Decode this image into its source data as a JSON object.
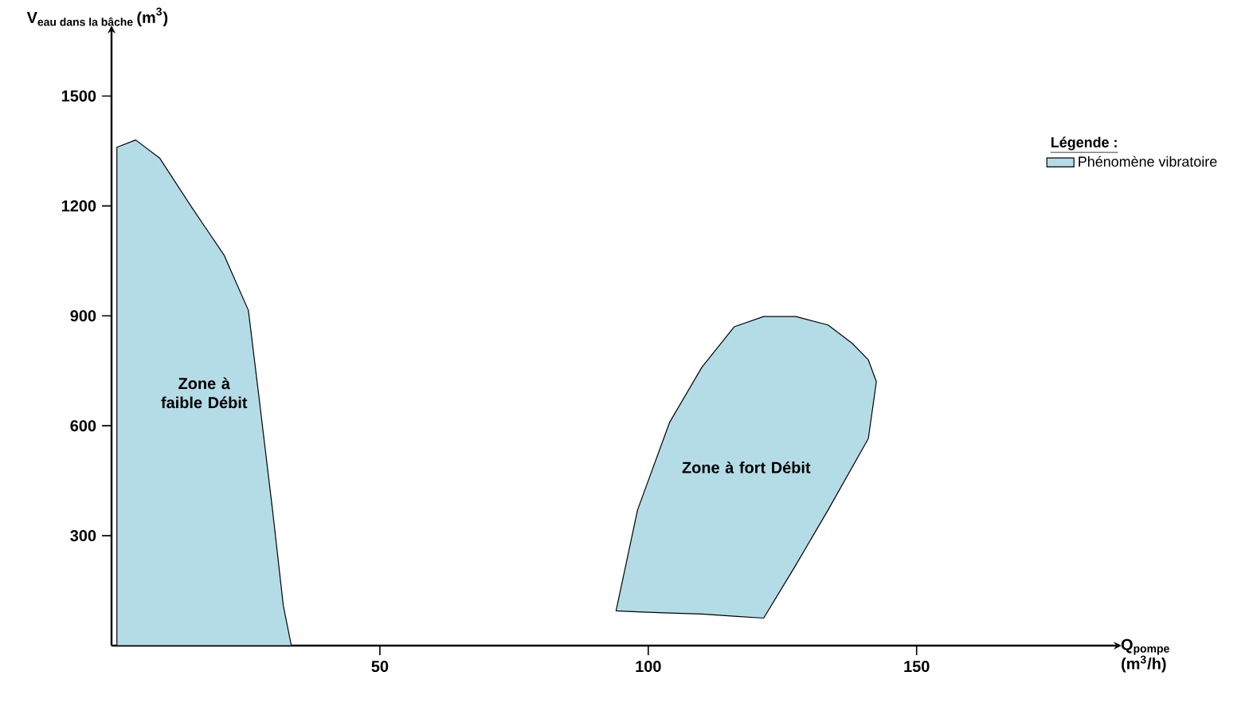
{
  "chart_data": {
    "type": "area",
    "xlabel": "Q$_{pompe}$ (m$^{3}$/h)",
    "ylabel": "\\text{\\bfseries V}_{\\text{eau dans la bâche}}\\,\\text{\\bfseries (m}^{\\mathbf{3}}\\text{\\bfseries )}",
    "legend_title": "Légende :",
    "legend": "top right",
    "xlim": [
      0,
      187
    ],
    "ylim": [
      0,
      1675
    ],
    "xticks": [
      50,
      100,
      150
    ],
    "yticks": [
      300,
      600,
      900,
      1200,
      1500
    ],
    "series": [
      {
        "name": "Phénomène vibratoire",
        "color": "#b4dce6",
        "x": [
          1,
          4.5,
          9,
          15,
          21,
          25.5,
          27.5,
          30,
          32,
          33.5,
          1
        ],
        "values": [
          1360,
          1380,
          1330,
          1195,
          1065,
          915,
          675,
          370,
          110,
          0,
          0
        ]
      },
      {
        "color": "#b4dce6",
        "x": [
          94,
          98,
          104,
          110,
          116,
          121.5,
          127.5,
          133.5,
          138,
          141,
          142.5,
          141,
          133.5,
          127.5,
          121.5,
          116,
          110,
          104,
          98
        ],
        "values": [
          95,
          370,
          610,
          760,
          870,
          898,
          898,
          875,
          825,
          780,
          720,
          565,
          370,
          220,
          75,
          80,
          86,
          89,
          92
        ]
      }
    ],
    "annotations": [
      "Zone à faible Débit",
      "Zone à fort Débit"
    ]
  }
}
